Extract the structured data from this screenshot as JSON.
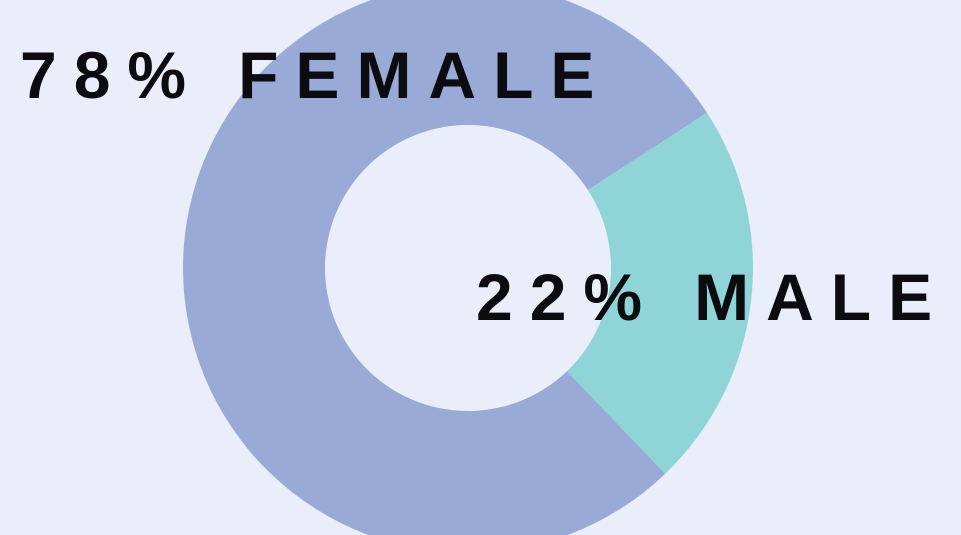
{
  "chart_data": {
    "type": "donut",
    "categories": [
      "FEMALE",
      "MALE"
    ],
    "values": [
      78,
      22
    ],
    "value_labels": [
      "78%",
      "22%"
    ],
    "colors": [
      "#99aad6",
      "#8fd5d8"
    ]
  }
}
